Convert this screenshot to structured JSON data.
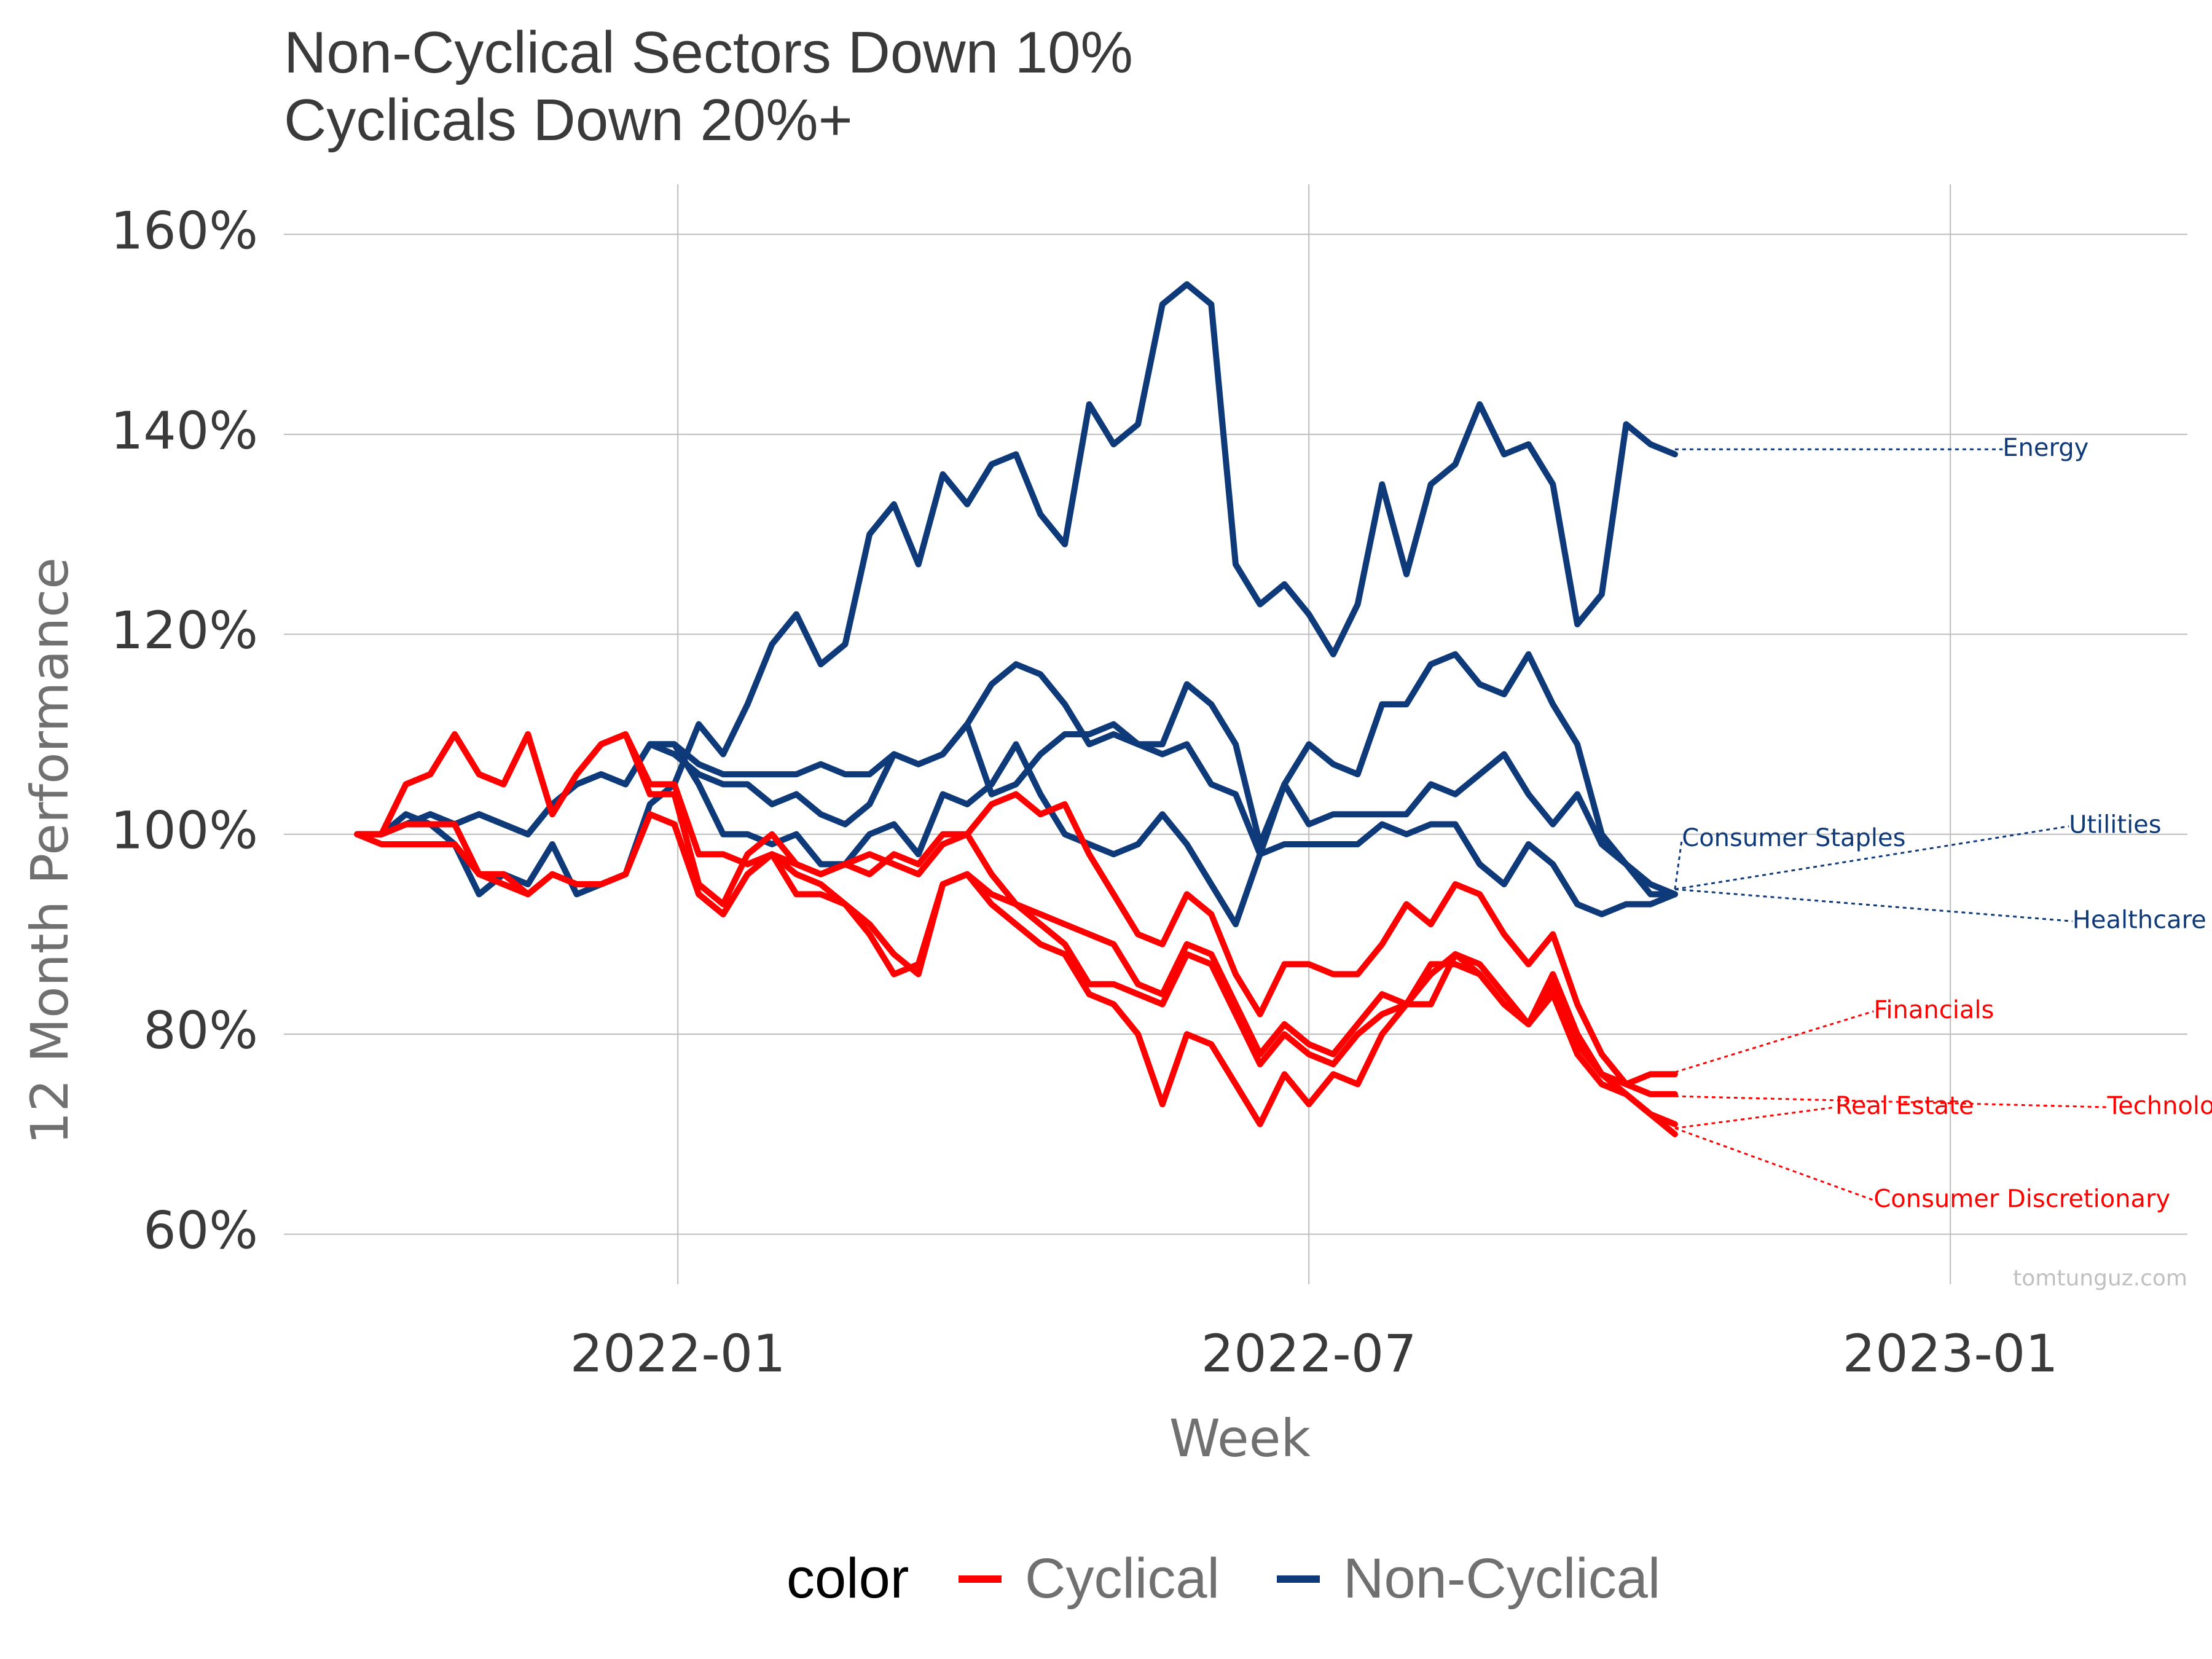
{
  "chart_data": {
    "type": "line",
    "title": "Non-Cyclical Sectors Down 10%\nCyclicals Down 20%+",
    "title_lines": [
      "Non-Cyclical Sectors Down 10%",
      "Cyclicals Down 20%+"
    ],
    "xlabel": "Week",
    "ylabel": "12 Month Performance",
    "x_ticks": [
      "2022-01",
      "2022-07",
      "2023-01"
    ],
    "y_ticks": [
      "60%",
      "80%",
      "100%",
      "120%",
      "140%",
      "160%"
    ],
    "ylim": [
      0.55,
      1.65
    ],
    "xlim": [
      "2021-09-10",
      "2023-03-10"
    ],
    "grid": true,
    "legend": {
      "title": "color",
      "position": "bottom",
      "entries": [
        {
          "label": "Cyclical",
          "color": "#ff0000"
        },
        {
          "label": "Non-Cyclical",
          "color": "#0f3a7a"
        }
      ]
    },
    "watermark": "tomtunguz.com",
    "colors": {
      "Cyclical": "#ff0000",
      "Non-Cyclical": "#0f3a7a"
    },
    "x": [
      "2021-10-01",
      "2021-10-08",
      "2021-10-15",
      "2021-10-22",
      "2021-10-29",
      "2021-11-05",
      "2021-11-12",
      "2021-11-19",
      "2021-11-26",
      "2021-12-03",
      "2021-12-10",
      "2021-12-17",
      "2021-12-24",
      "2021-12-31",
      "2022-01-07",
      "2022-01-14",
      "2022-01-21",
      "2022-01-28",
      "2022-02-04",
      "2022-02-11",
      "2022-02-18",
      "2022-02-25",
      "2022-03-04",
      "2022-03-11",
      "2022-03-18",
      "2022-03-25",
      "2022-04-01",
      "2022-04-08",
      "2022-04-15",
      "2022-04-22",
      "2022-04-29",
      "2022-05-06",
      "2022-05-13",
      "2022-05-20",
      "2022-05-27",
      "2022-06-03",
      "2022-06-10",
      "2022-06-17",
      "2022-06-24",
      "2022-07-01",
      "2022-07-08",
      "2022-07-15",
      "2022-07-22",
      "2022-07-29",
      "2022-08-05",
      "2022-08-12",
      "2022-08-19",
      "2022-08-26",
      "2022-09-02",
      "2022-09-09",
      "2022-09-16",
      "2022-09-23",
      "2022-09-30",
      "2022-10-07",
      "2022-10-14"
    ],
    "series": [
      {
        "name": "Energy",
        "group": "Non-Cyclical",
        "values": [
          1.0,
          1.0,
          1.02,
          1.01,
          0.99,
          0.94,
          0.96,
          0.95,
          0.99,
          0.94,
          0.95,
          0.96,
          1.03,
          1.05,
          1.11,
          1.08,
          1.13,
          1.19,
          1.22,
          1.17,
          1.19,
          1.3,
          1.33,
          1.27,
          1.36,
          1.33,
          1.37,
          1.38,
          1.32,
          1.29,
          1.43,
          1.39,
          1.41,
          1.53,
          1.55,
          1.53,
          1.27,
          1.23,
          1.25,
          1.22,
          1.18,
          1.23,
          1.35,
          1.26,
          1.35,
          1.37,
          1.43,
          1.38,
          1.39,
          1.35,
          1.21,
          1.24,
          1.41,
          1.39,
          1.38
        ]
      },
      {
        "name": "Utilities",
        "group": "Non-Cyclical",
        "values": [
          1.0,
          1.0,
          1.01,
          1.02,
          1.01,
          1.02,
          1.01,
          1.0,
          1.03,
          1.05,
          1.06,
          1.05,
          1.09,
          1.09,
          1.07,
          1.06,
          1.06,
          1.06,
          1.06,
          1.07,
          1.06,
          1.06,
          1.08,
          1.07,
          1.08,
          1.11,
          1.15,
          1.17,
          1.16,
          1.13,
          1.09,
          1.1,
          1.09,
          1.09,
          1.15,
          1.13,
          1.09,
          0.99,
          1.05,
          1.09,
          1.07,
          1.06,
          1.13,
          1.13,
          1.17,
          1.18,
          1.15,
          1.14,
          1.18,
          1.13,
          1.09,
          1.0,
          0.97,
          0.95,
          0.94
        ]
      },
      {
        "name": "Consumer Staples",
        "group": "Non-Cyclical",
        "values": [
          1.0,
          1.0,
          1.01,
          1.02,
          1.01,
          1.02,
          1.01,
          1.0,
          1.03,
          1.05,
          1.06,
          1.05,
          1.09,
          1.08,
          1.06,
          1.05,
          1.05,
          1.03,
          1.04,
          1.02,
          1.01,
          1.03,
          1.08,
          1.07,
          1.08,
          1.11,
          1.04,
          1.05,
          1.08,
          1.1,
          1.1,
          1.11,
          1.09,
          1.08,
          1.09,
          1.05,
          1.04,
          0.98,
          1.05,
          1.01,
          1.02,
          1.02,
          1.02,
          1.02,
          1.05,
          1.04,
          1.06,
          1.08,
          1.04,
          1.01,
          1.04,
          0.99,
          0.97,
          0.94,
          0.94
        ]
      },
      {
        "name": "Healthcare",
        "group": "Non-Cyclical",
        "values": [
          1.0,
          1.0,
          1.01,
          1.02,
          1.01,
          1.02,
          1.01,
          1.0,
          1.03,
          1.05,
          1.06,
          1.05,
          1.09,
          1.09,
          1.05,
          1.0,
          1.0,
          0.99,
          1.0,
          0.97,
          0.97,
          1.0,
          1.01,
          0.98,
          1.04,
          1.03,
          1.05,
          1.09,
          1.04,
          1.0,
          0.99,
          0.98,
          0.99,
          1.02,
          0.99,
          0.95,
          0.91,
          0.98,
          0.99,
          0.99,
          0.99,
          0.99,
          1.01,
          1.0,
          1.01,
          1.01,
          0.97,
          0.95,
          0.99,
          0.97,
          0.93,
          0.92,
          0.93,
          0.93,
          0.94
        ]
      },
      {
        "name": "Financials",
        "group": "Cyclical",
        "values": [
          1.0,
          1.0,
          1.05,
          1.06,
          1.1,
          1.06,
          1.05,
          1.1,
          1.02,
          1.06,
          1.09,
          1.1,
          1.05,
          1.05,
          0.98,
          0.98,
          0.97,
          0.98,
          0.97,
          0.96,
          0.97,
          0.96,
          0.98,
          0.97,
          1.0,
          1.0,
          1.03,
          1.04,
          1.02,
          1.03,
          0.98,
          0.94,
          0.9,
          0.89,
          0.94,
          0.92,
          0.86,
          0.82,
          0.87,
          0.87,
          0.86,
          0.86,
          0.89,
          0.93,
          0.91,
          0.95,
          0.94,
          0.9,
          0.87,
          0.9,
          0.83,
          0.78,
          0.75,
          0.76,
          0.76
        ]
      },
      {
        "name": "Technology",
        "group": "Cyclical",
        "values": [
          1.0,
          1.0,
          1.05,
          1.06,
          1.1,
          1.06,
          1.05,
          1.1,
          1.02,
          1.06,
          1.09,
          1.1,
          1.04,
          1.04,
          0.95,
          0.93,
          0.98,
          1.0,
          0.97,
          0.96,
          0.97,
          0.98,
          0.97,
          0.96,
          0.99,
          1.0,
          0.96,
          0.93,
          0.92,
          0.91,
          0.9,
          0.89,
          0.85,
          0.84,
          0.89,
          0.88,
          0.83,
          0.78,
          0.81,
          0.79,
          0.78,
          0.81,
          0.84,
          0.83,
          0.86,
          0.88,
          0.87,
          0.84,
          0.81,
          0.86,
          0.8,
          0.76,
          0.75,
          0.74,
          0.74
        ]
      },
      {
        "name": "Real Estate",
        "group": "Cyclical",
        "values": [
          1.0,
          1.0,
          1.01,
          1.01,
          1.01,
          0.96,
          0.96,
          0.94,
          0.96,
          0.95,
          0.95,
          0.96,
          1.02,
          1.01,
          0.94,
          0.92,
          0.96,
          0.98,
          0.94,
          0.94,
          0.93,
          0.91,
          0.88,
          0.86,
          0.95,
          0.96,
          0.94,
          0.93,
          0.91,
          0.89,
          0.85,
          0.85,
          0.84,
          0.83,
          0.88,
          0.87,
          0.82,
          0.77,
          0.8,
          0.78,
          0.77,
          0.8,
          0.82,
          0.83,
          0.87,
          0.87,
          0.86,
          0.83,
          0.81,
          0.84,
          0.78,
          0.75,
          0.74,
          0.72,
          0.71
        ]
      },
      {
        "name": "Consumer Discretionary",
        "group": "Cyclical",
        "values": [
          1.0,
          0.99,
          0.99,
          0.99,
          0.99,
          0.96,
          0.95,
          0.94,
          0.96,
          0.95,
          0.95,
          0.96,
          1.02,
          1.01,
          0.94,
          0.92,
          0.96,
          0.98,
          0.96,
          0.95,
          0.93,
          0.9,
          0.86,
          0.87,
          0.95,
          0.96,
          0.93,
          0.91,
          0.89,
          0.88,
          0.84,
          0.83,
          0.8,
          0.73,
          0.8,
          0.79,
          0.75,
          0.71,
          0.76,
          0.73,
          0.76,
          0.75,
          0.8,
          0.83,
          0.83,
          0.88,
          0.86,
          0.83,
          0.81,
          0.85,
          0.79,
          0.76,
          0.74,
          0.72,
          0.7
        ]
      }
    ],
    "annotations": [
      {
        "label": "Energy",
        "group": "Non-Cyclical",
        "end_value": 1.385,
        "label_x": "2023-01-16",
        "label_y": 1.385
      },
      {
        "label": "Consumer Staples",
        "group": "Non-Cyclical",
        "end_value": 0.945,
        "label_x": "2022-10-16",
        "label_y": 0.995
      },
      {
        "label": "Utilities",
        "group": "Non-Cyclical",
        "end_value": 0.945,
        "label_x": "2023-02-04",
        "label_y": 1.008
      },
      {
        "label": "Healthcare",
        "group": "Non-Cyclical",
        "end_value": 0.945,
        "label_x": "2023-02-05",
        "label_y": 0.913
      },
      {
        "label": "Financials",
        "group": "Cyclical",
        "end_value": 0.762,
        "label_x": "2022-12-10",
        "label_y": 0.823
      },
      {
        "label": "Technology",
        "group": "Cyclical",
        "end_value": 0.738,
        "label_x": "2023-02-15",
        "label_y": 0.727
      },
      {
        "label": "Real Estate",
        "group": "Cyclical",
        "end_value": 0.706,
        "label_x": "2022-11-29",
        "label_y": 0.727
      },
      {
        "label": "Consumer Discretionary",
        "group": "Cyclical",
        "end_value": 0.706,
        "label_x": "2022-12-10",
        "label_y": 0.634
      }
    ]
  }
}
